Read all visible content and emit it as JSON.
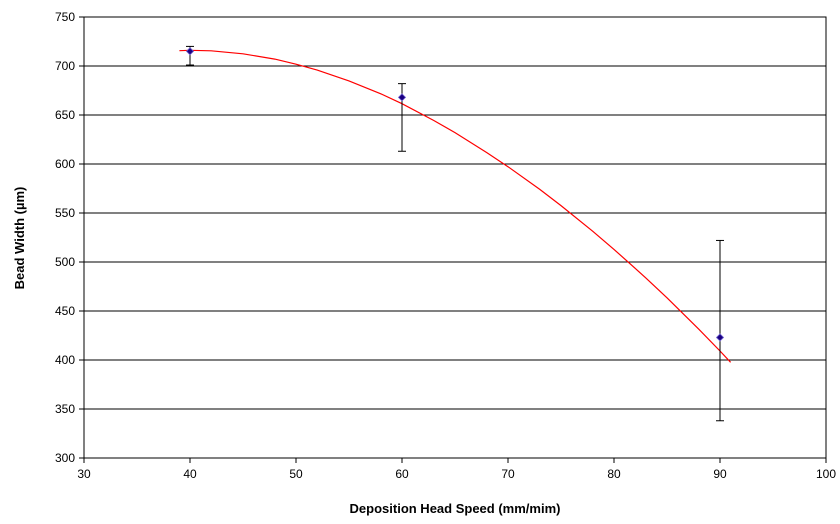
{
  "chart_data": {
    "type": "scatter",
    "title": "",
    "xlabel": "Deposition Head Speed (mm/mim)",
    "ylabel": "Bead Width (µm)",
    "xlim": [
      30,
      100
    ],
    "ylim": [
      300,
      750
    ],
    "xticks": [
      30,
      40,
      50,
      60,
      70,
      80,
      90,
      100
    ],
    "yticks": [
      300,
      350,
      400,
      450,
      500,
      550,
      600,
      650,
      700,
      750
    ],
    "grid": "horizontal",
    "legend": "none",
    "series": [
      {
        "points": [
          {
            "x": 40,
            "y": 715,
            "err_low": 701,
            "err_high": 720
          },
          {
            "x": 60,
            "y": 668,
            "err_low": 613,
            "err_high": 682
          },
          {
            "x": 90,
            "y": 423,
            "err_low": 338,
            "err_high": 522
          }
        ],
        "marker_color": "#1a0080",
        "errorbar_color": "#000000"
      }
    ],
    "trendline": {
      "type": "polynomial-2",
      "x_range": [
        39,
        91
      ],
      "points": [
        {
          "x": 39,
          "y": 715.6
        },
        {
          "x": 40,
          "y": 716.0
        },
        {
          "x": 42,
          "y": 715.5
        },
        {
          "x": 45,
          "y": 712.5
        },
        {
          "x": 48,
          "y": 707.0
        },
        {
          "x": 50,
          "y": 701.8
        },
        {
          "x": 52,
          "y": 695.8
        },
        {
          "x": 55,
          "y": 684.8
        },
        {
          "x": 58,
          "y": 671.6
        },
        {
          "x": 60,
          "y": 661.5
        },
        {
          "x": 63,
          "y": 644.4
        },
        {
          "x": 65,
          "y": 632.0
        },
        {
          "x": 68,
          "y": 611.6
        },
        {
          "x": 70,
          "y": 597.2
        },
        {
          "x": 73,
          "y": 574.1
        },
        {
          "x": 75,
          "y": 557.6
        },
        {
          "x": 78,
          "y": 531.3
        },
        {
          "x": 80,
          "y": 512.9
        },
        {
          "x": 83,
          "y": 483.8
        },
        {
          "x": 85,
          "y": 463.5
        },
        {
          "x": 88,
          "y": 431.4
        },
        {
          "x": 90,
          "y": 409.2
        },
        {
          "x": 91,
          "y": 397.7
        }
      ],
      "color": "#ff0000"
    }
  }
}
